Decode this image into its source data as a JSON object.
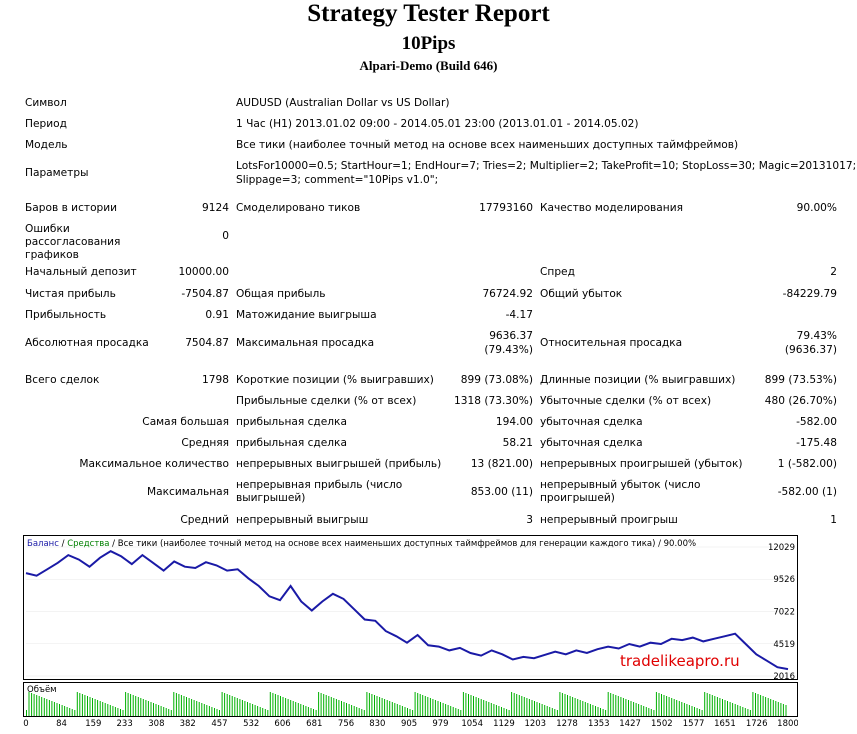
{
  "header": {
    "title": "Strategy Tester Report",
    "ea_name": "10Pips",
    "server": "Alpari-Demo (Build 646)"
  },
  "info": {
    "symbol_label": "Символ",
    "symbol_value": "AUDUSD (Australian Dollar vs US Dollar)",
    "period_label": "Период",
    "period_value": "1 Час (H1) 2013.01.02 09:00 - 2014.05.01 23:00 (2013.01.01 - 2014.05.02)",
    "model_label": "Модель",
    "model_value": "Все тики (наиболее точный метод на основе всех наименьших доступных таймфреймов)",
    "params_label": "Параметры",
    "params_line1": "LotsFor10000=0.5; StartHour=1; EndHour=7; Tries=2; Multiplier=2; TakeProfit=10; StopLoss=30; Magic=20131017;",
    "params_line2": "Slippage=3; comment=\"10Pips v1.0\";"
  },
  "stats": {
    "bars_label": "Баров в истории",
    "bars_value": "9124",
    "ticks_label": "Смоделировано тиков",
    "ticks_value": "17793160",
    "quality_label": "Качество моделирования",
    "quality_value": "90.00%",
    "mismatch_label": "Ошибки рассогласования графиков",
    "mismatch_value": "0",
    "deposit_label": "Начальный депозит",
    "deposit_value": "10000.00",
    "spread_label": "Спред",
    "spread_value": "2",
    "net_label": "Чистая прибыль",
    "net_value": "-7504.87",
    "gross_profit_label": "Общая прибыль",
    "gross_profit_value": "76724.92",
    "gross_loss_label": "Общий убыток",
    "gross_loss_value": "-84229.79",
    "pf_label": "Прибыльность",
    "pf_value": "0.91",
    "expected_label": "Матожидание выигрыша",
    "expected_value": "-4.17",
    "abs_dd_label": "Абсолютная просадка",
    "abs_dd_value": "7504.87",
    "max_dd_label": "Максимальная просадка",
    "max_dd_value1": "9636.37",
    "max_dd_value2": "(79.43%)",
    "rel_dd_label": "Относительная просадка",
    "rel_dd_value1": "79.43%",
    "rel_dd_value2": "(9636.37)",
    "total_label": "Всего сделок",
    "total_value": "1798",
    "short_label": "Короткие позиции (% выигравших)",
    "short_value": "899 (73.08%)",
    "long_label": "Длинные позиции (% выигравших)",
    "long_value": "899 (73.53%)",
    "profit_trades_label": "Прибыльные сделки (% от всех)",
    "profit_trades_value": "1318 (73.30%)",
    "loss_trades_label": "Убыточные сделки (% от всех)",
    "loss_trades_value": "480 (26.70%)",
    "largest_label": "Самая большая",
    "largest_profit_label": "прибыльная сделка",
    "largest_profit_value": "194.00",
    "largest_loss_label": "убыточная сделка",
    "largest_loss_value": "-582.00",
    "average_label": "Средняя",
    "average_profit_label": "прибыльная сделка",
    "average_profit_value": "58.21",
    "average_loss_label": "убыточная сделка",
    "average_loss_value": "-175.48",
    "max_count_label": "Максимальное количество",
    "max_cons_wins_label": "непрерывных выигрышей (прибыль)",
    "max_cons_wins_value": "13 (821.00)",
    "max_cons_losses_label": "непрерывных проигрышей (убыток)",
    "max_cons_losses_value": "1 (-582.00)",
    "maximal_label": "Максимальная",
    "max_cons_profit_label": "непрерывная прибыль (число выигрышей)",
    "max_cons_profit_value": "853.00 (11)",
    "max_cons_loss_label": "непрерывный убыток (число проигрышей)",
    "max_cons_loss_value": "-582.00 (1)",
    "avg_cons_label": "Средний",
    "avg_cons_wins_label": "непрерывный выигрыш",
    "avg_cons_wins_value": "3",
    "avg_cons_losses_label": "непрерывный проигрыш",
    "avg_cons_losses_value": "1"
  },
  "chart_data": {
    "type": "line",
    "legend_balance": "Баланс",
    "legend_sep1": " / ",
    "legend_equity": "Средства",
    "legend_rest": " / Все тики (наиболее точный метод на основе всех наименьших доступных таймфреймов для генерации каждого тика) / 90.00%",
    "volume_label": "Объём",
    "watermark": "tradelikeapro.ru",
    "y_ticks": [
      "12029",
      "9526",
      "7022",
      "4519",
      "2016"
    ],
    "x_ticks": [
      "0",
      "84",
      "159",
      "233",
      "308",
      "382",
      "457",
      "532",
      "606",
      "681",
      "756",
      "830",
      "905",
      "979",
      "1054",
      "1129",
      "1203",
      "1278",
      "1353",
      "1427",
      "1502",
      "1577",
      "1651",
      "1726",
      "1800"
    ],
    "xlim": [
      0,
      1800
    ],
    "ylim": [
      2016,
      12029
    ],
    "series": [
      {
        "name": "Баланс",
        "color": "#1a1aa6",
        "x": [
          0,
          25,
          50,
          75,
          100,
          125,
          150,
          175,
          200,
          225,
          250,
          275,
          300,
          325,
          350,
          375,
          400,
          425,
          450,
          475,
          500,
          525,
          550,
          575,
          600,
          625,
          650,
          675,
          700,
          725,
          750,
          775,
          800,
          825,
          850,
          875,
          900,
          925,
          950,
          975,
          1000,
          1025,
          1050,
          1075,
          1100,
          1125,
          1150,
          1175,
          1200,
          1225,
          1250,
          1275,
          1300,
          1325,
          1350,
          1375,
          1400,
          1425,
          1450,
          1475,
          1500,
          1525,
          1550,
          1575,
          1600,
          1625,
          1650,
          1675,
          1700,
          1725,
          1750,
          1775,
          1800
        ],
        "values": [
          10000,
          9800,
          10300,
          10800,
          11400,
          11050,
          10500,
          11200,
          11700,
          11300,
          10700,
          11400,
          10800,
          10200,
          10900,
          10500,
          10400,
          10850,
          10600,
          10200,
          10300,
          9600,
          9000,
          8200,
          7900,
          9000,
          7800,
          7100,
          7800,
          8400,
          8000,
          7200,
          6400,
          6300,
          5500,
          5100,
          4600,
          5200,
          4400,
          4300,
          4000,
          4200,
          3800,
          3600,
          4000,
          3700,
          3300,
          3500,
          3400,
          3650,
          3900,
          3700,
          4000,
          3800,
          4100,
          4300,
          4150,
          4500,
          4300,
          4600,
          4500,
          4900,
          4800,
          5000,
          4700,
          4900,
          5100,
          5300,
          4500,
          3700,
          3200,
          2700,
          2550
        ]
      }
    ]
  }
}
